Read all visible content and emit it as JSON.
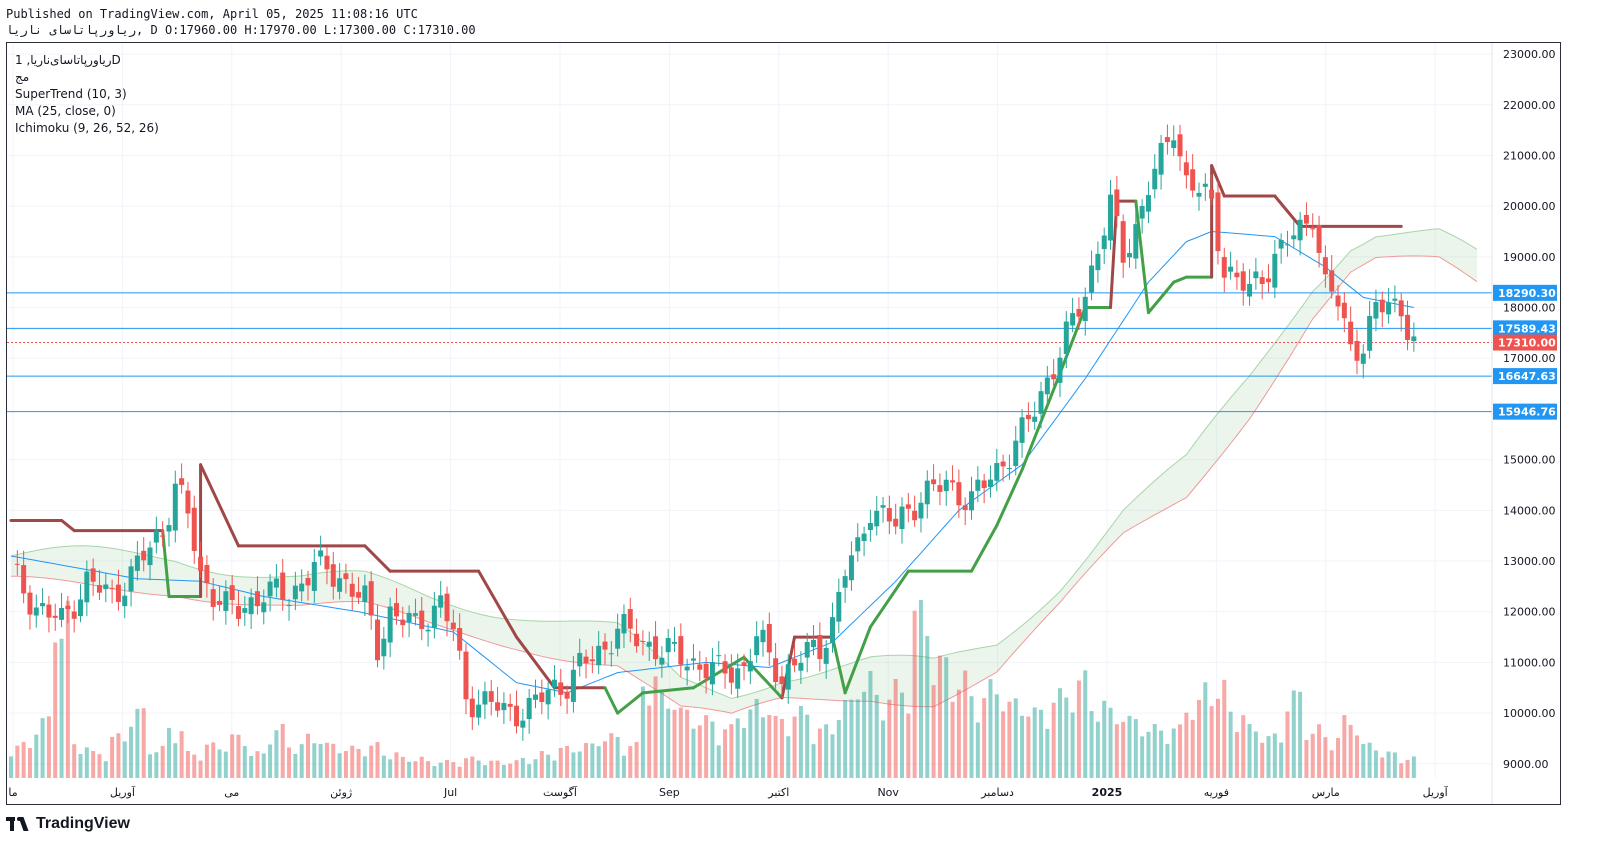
{
  "header": {
    "published": "Published on TradingView.com, April 05, 2025 11:08:16 UTC",
    "symbol_line": "ریاورپاتاسای ناریا, D O:17960.00 H:17970.00 L:17300.00 C:17310.00"
  },
  "legend": {
    "symbol": "ریاورپاتاسای‌ناریا, 1D",
    "exchange": "مج",
    "indicators": [
      "SuperTrend (10, 3)",
      "MA (25, close, 0)",
      "Ichimoku (9, 26, 52, 26)"
    ]
  },
  "footer": {
    "brand": "TradingView"
  },
  "colors": {
    "up": "#26a69a",
    "down": "#ef5350",
    "supertrend_up": "#43a047",
    "supertrend_down": "#a04747",
    "ma": "#2196f3",
    "hline": "#2196f3",
    "last": "#ef5350"
  },
  "chart_data": {
    "type": "candlestick",
    "y_ticks": [
      "23000.00",
      "22000.00",
      "21000.00",
      "20000.00",
      "19000.00",
      "18000.00",
      "17000.00",
      "15000.00",
      "14000.00",
      "13000.00",
      "12000.00",
      "11000.00",
      "10000.00",
      "9000.00"
    ],
    "ylim": [
      8720,
      23100
    ],
    "x_ticks": [
      "ما",
      "آوریل",
      "می",
      "ژوئن",
      "Jul",
      "آگوست",
      "Sep",
      "اکتبر",
      "Nov",
      "دسامبر",
      "2025",
      "فوریه",
      "مارس",
      "آوریل"
    ],
    "horizontal_lines": [
      {
        "label": "18290.30",
        "value": 18290.3
      },
      {
        "label": "17589.43",
        "value": 17589.43
      },
      {
        "label": "16647.63",
        "value": 16647.63
      },
      {
        "label": "15946.76",
        "value": 15946.76
      }
    ],
    "last_price": {
      "label": "17310.00",
      "value": 17310
    },
    "close_path": [
      [
        0,
        12800
      ],
      [
        4,
        12100
      ],
      [
        8,
        11800
      ],
      [
        12,
        12600
      ],
      [
        16,
        12300
      ],
      [
        20,
        12900
      ],
      [
        24,
        13600
      ],
      [
        26,
        14500
      ],
      [
        28,
        13900
      ],
      [
        30,
        12700
      ],
      [
        34,
        12100
      ],
      [
        36,
        12000
      ],
      [
        40,
        12400
      ],
      [
        44,
        12300
      ],
      [
        48,
        12900
      ],
      [
        52,
        12700
      ],
      [
        56,
        12200
      ],
      [
        58,
        11300
      ],
      [
        60,
        12000
      ],
      [
        64,
        11700
      ],
      [
        68,
        12200
      ],
      [
        70,
        11600
      ],
      [
        72,
        10300
      ],
      [
        76,
        10200
      ],
      [
        78,
        10000
      ],
      [
        82,
        10100
      ],
      [
        86,
        10500
      ],
      [
        88,
        10600
      ],
      [
        90,
        10900
      ],
      [
        94,
        11300
      ],
      [
        96,
        11700
      ],
      [
        100,
        11400
      ],
      [
        104,
        11200
      ],
      [
        108,
        11000
      ],
      [
        112,
        10800
      ],
      [
        116,
        10900
      ],
      [
        118,
        11500
      ],
      [
        120,
        11100
      ],
      [
        122,
        10700
      ],
      [
        124,
        11000
      ],
      [
        128,
        11300
      ],
      [
        130,
        11800
      ],
      [
        132,
        12800
      ],
      [
        134,
        13200
      ],
      [
        136,
        14100
      ],
      [
        140,
        13700
      ],
      [
        144,
        14300
      ],
      [
        148,
        14500
      ],
      [
        152,
        14200
      ],
      [
        156,
        14800
      ],
      [
        160,
        15500
      ],
      [
        162,
        16000
      ],
      [
        164,
        16600
      ],
      [
        166,
        17100
      ],
      [
        170,
        18300
      ],
      [
        172,
        19200
      ],
      [
        174,
        20000
      ],
      [
        176,
        19000
      ],
      [
        178,
        19600
      ],
      [
        180,
        20400
      ],
      [
        182,
        20900
      ],
      [
        184,
        21600
      ],
      [
        186,
        20500
      ],
      [
        188,
        20300
      ],
      [
        190,
        20000
      ],
      [
        192,
        18800
      ],
      [
        196,
        18300
      ],
      [
        200,
        19000
      ],
      [
        202,
        19300
      ],
      [
        204,
        19500
      ],
      [
        206,
        19900
      ],
      [
        208,
        18400
      ],
      [
        210,
        18100
      ],
      [
        212,
        17200
      ],
      [
        214,
        17300
      ],
      [
        216,
        17900
      ],
      [
        218,
        18100
      ],
      [
        220,
        18000
      ],
      [
        222,
        17300
      ]
    ],
    "volume_profile": [
      0.2,
      0.35,
      1,
      0.2,
      0.15,
      0.25,
      0.4,
      0.18,
      0.3,
      0.15,
      0.2,
      0.25,
      0.15,
      0.3,
      0.2,
      0.25,
      0.2,
      0.18,
      0.2,
      0.15,
      0.12,
      0.1,
      0.1,
      0.12,
      0.1,
      0.1,
      0.12,
      0.15,
      0.18,
      0.2,
      0.25,
      0.2,
      0.6,
      0.5,
      0.4,
      0.35,
      0.3,
      0.4,
      0.45,
      0.35,
      0.4,
      0.3,
      0.45,
      0.6,
      0.5,
      0.55,
      1,
      0.7,
      0.6,
      0.5,
      0.55,
      0.45,
      0.4,
      0.5,
      0.6,
      0.45,
      0.4,
      0.35,
      0.3,
      0.3,
      0.45,
      0.55,
      0.4,
      0.3,
      0.25,
      0.5,
      0.3,
      0.25,
      0.35,
      0.2,
      0.15,
      0.12
    ],
    "ma_path": [
      [
        0,
        13100
      ],
      [
        20,
        12650
      ],
      [
        30,
        12600
      ],
      [
        40,
        12300
      ],
      [
        55,
        12000
      ],
      [
        70,
        11600
      ],
      [
        80,
        10600
      ],
      [
        88,
        10400
      ],
      [
        96,
        10800
      ],
      [
        110,
        11000
      ],
      [
        120,
        10900
      ],
      [
        130,
        11400
      ],
      [
        140,
        12600
      ],
      [
        150,
        14000
      ],
      [
        160,
        14900
      ],
      [
        170,
        16600
      ],
      [
        180,
        18500
      ],
      [
        186,
        19300
      ],
      [
        190,
        19500
      ],
      [
        200,
        19400
      ],
      [
        208,
        18800
      ],
      [
        214,
        18200
      ],
      [
        222,
        18000
      ]
    ],
    "supertrend_path": [
      [
        0,
        13800,
        "d"
      ],
      [
        8,
        13800,
        "d"
      ],
      [
        10,
        13600,
        "d"
      ],
      [
        24,
        13600,
        "d"
      ],
      [
        25,
        12300,
        "u"
      ],
      [
        30,
        12300,
        "u"
      ],
      [
        30,
        14900,
        "d"
      ],
      [
        36,
        13300,
        "d"
      ],
      [
        56,
        13300,
        "d"
      ],
      [
        60,
        12800,
        "d"
      ],
      [
        74,
        12800,
        "d"
      ],
      [
        80,
        11500,
        "d"
      ],
      [
        86,
        10500,
        "d"
      ],
      [
        94,
        10500,
        "d"
      ],
      [
        96,
        10000,
        "u"
      ],
      [
        100,
        10400,
        "u"
      ],
      [
        108,
        10500,
        "u"
      ],
      [
        116,
        11100,
        "u"
      ],
      [
        122,
        10300,
        "u"
      ],
      [
        124,
        11500,
        "d"
      ],
      [
        130,
        11500,
        "d"
      ],
      [
        132,
        10400,
        "u"
      ],
      [
        136,
        11700,
        "u"
      ],
      [
        142,
        12800,
        "u"
      ],
      [
        152,
        12800,
        "u"
      ],
      [
        156,
        13700,
        "u"
      ],
      [
        160,
        14800,
        "u"
      ],
      [
        166,
        16700,
        "u"
      ],
      [
        170,
        18000,
        "u"
      ],
      [
        174,
        18000,
        "u"
      ],
      [
        175,
        20100,
        "d"
      ],
      [
        178,
        20100,
        "d"
      ],
      [
        180,
        17900,
        "u"
      ],
      [
        184,
        18500,
        "u"
      ],
      [
        186,
        18600,
        "u"
      ],
      [
        190,
        18600,
        "u"
      ],
      [
        190,
        20800,
        "d"
      ],
      [
        192,
        20200,
        "d"
      ],
      [
        200,
        20200,
        "d"
      ],
      [
        204,
        19600,
        "d"
      ],
      [
        220,
        19600,
        "d"
      ]
    ]
  }
}
